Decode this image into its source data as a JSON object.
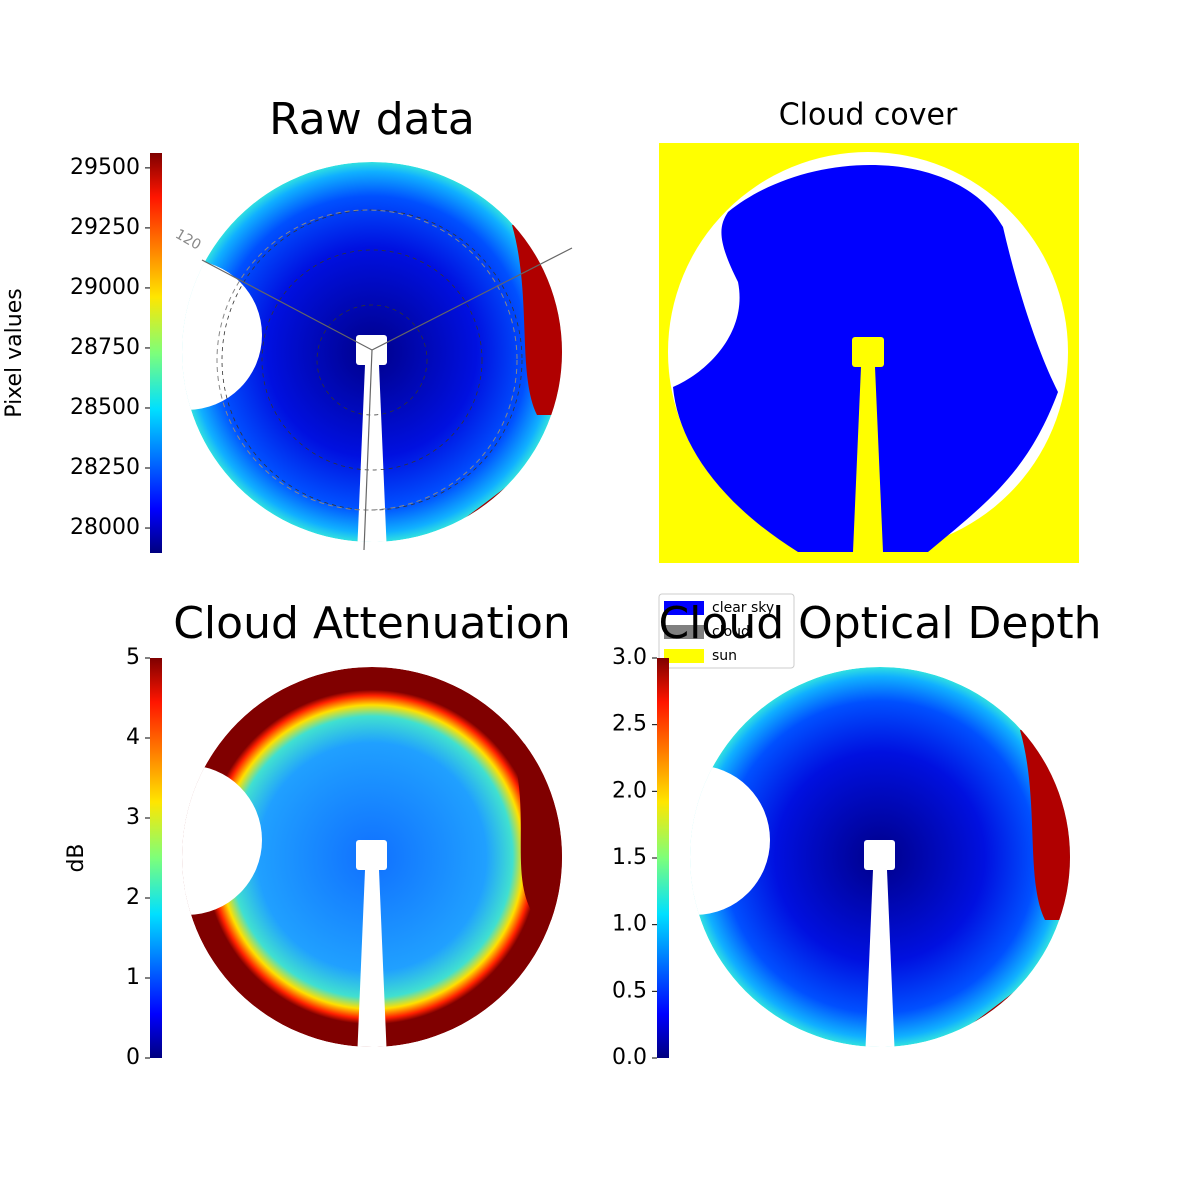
{
  "chart_data": [
    {
      "type": "image",
      "title": "Raw data",
      "colorbar_label": "Pixel values",
      "clim": [
        27896,
        29562
      ],
      "cticks": [
        28000,
        28250,
        28500,
        28750,
        29000,
        29250,
        29500
      ],
      "cmap": "jet",
      "annotation": "120",
      "style": "raw"
    },
    {
      "type": "categorical",
      "title": "Cloud cover",
      "categories": [
        "clear sky",
        "cloud",
        "sun"
      ],
      "colors": [
        "#0000ff",
        "#808080",
        "#ffff00"
      ]
    },
    {
      "type": "image",
      "title": "Cloud Attenuation",
      "colorbar_label": "dB",
      "clim": [
        0,
        5
      ],
      "cticks": [
        0,
        1,
        2,
        3,
        4,
        5
      ],
      "cmap": "jet",
      "style": "attenuation"
    },
    {
      "type": "image",
      "title": "Cloud Optical Depth",
      "clim": [
        0,
        3
      ],
      "cticks": [
        {
          "value": 0,
          "label": "0.0"
        },
        {
          "value": 0.5,
          "label": "0.5"
        },
        {
          "value": 1,
          "label": "1.0"
        },
        {
          "value": 1.5,
          "label": "1.5"
        },
        {
          "value": 2,
          "label": "2.0"
        },
        {
          "value": 2.5,
          "label": "2.5"
        },
        {
          "value": 3,
          "label": "3.0"
        }
      ],
      "cmap": "jet",
      "style": "raw"
    }
  ]
}
